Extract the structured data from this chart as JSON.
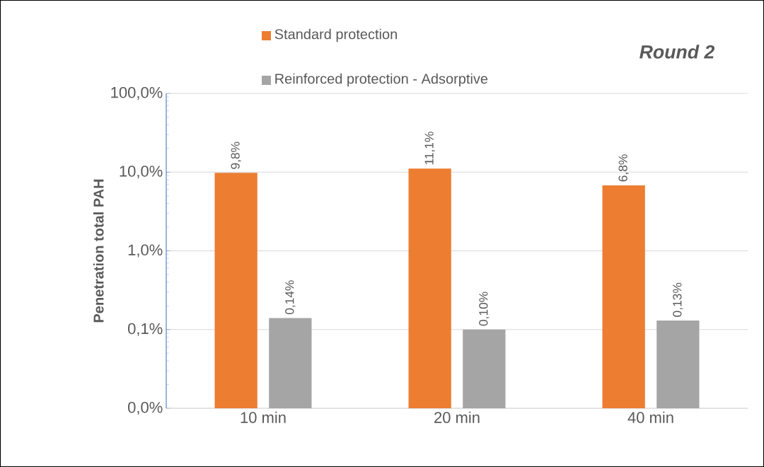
{
  "chart_data": {
    "type": "bar",
    "title": "Round 2",
    "ylabel": "Penetration total PAH",
    "categories": [
      "10 min",
      "20 min",
      "40 min"
    ],
    "series": [
      {
        "name": "Standard protection",
        "color": "#ed7d31",
        "values": [
          9.8,
          11.1,
          6.8
        ],
        "value_labels": [
          "9,8%",
          "11,1%",
          "6,8%"
        ]
      },
      {
        "name": "Reinforced protection - Adsorptive",
        "color": "#a5a5a5",
        "values": [
          0.14,
          0.1,
          0.13
        ],
        "value_labels": [
          "0,14%",
          "0,10%",
          "0,13%"
        ]
      }
    ],
    "log": true,
    "ylim": [
      0.01,
      100
    ],
    "yticks": [
      {
        "value": 0.01,
        "label": "0,0%"
      },
      {
        "value": 0.1,
        "label": "0,1%"
      },
      {
        "value": 1,
        "label": "1,0%"
      },
      {
        "value": 10,
        "label": "10,0%"
      },
      {
        "value": 100,
        "label": "100,0%"
      }
    ],
    "grid": "y",
    "legend": "top left"
  }
}
